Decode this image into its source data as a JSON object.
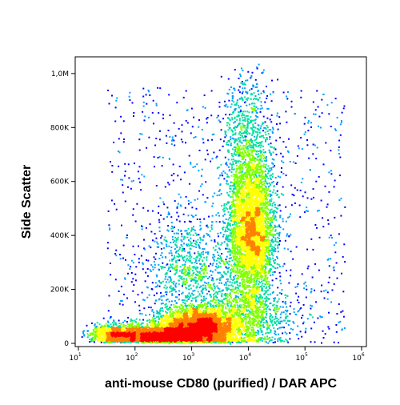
{
  "chart_data": {
    "type": "scatter",
    "style": "flow-cytometry density dot plot (pseudocolor)",
    "xlabel": "anti-mouse CD80 (purified) / DAR APC",
    "ylabel": "Side Scatter",
    "x_scale": "log",
    "xlim": [
      10,
      1000000
    ],
    "y_scale": "linear",
    "ylim": [
      0,
      1050000
    ],
    "x_ticks": [
      {
        "value": 10,
        "base": "10",
        "exp": "1"
      },
      {
        "value": 100,
        "base": "10",
        "exp": "2"
      },
      {
        "value": 1000,
        "base": "10",
        "exp": "3"
      },
      {
        "value": 10000,
        "base": "10",
        "exp": "4"
      },
      {
        "value": 100000,
        "base": "10",
        "exp": "5"
      },
      {
        "value": 1000000,
        "base": "10",
        "exp": "6"
      }
    ],
    "y_ticks": [
      {
        "value": 0,
        "label": "0"
      },
      {
        "value": 200000,
        "label": "200K"
      },
      {
        "value": 400000,
        "label": "400K"
      },
      {
        "value": 600000,
        "label": "600K"
      },
      {
        "value": 800000,
        "label": "800K"
      },
      {
        "value": 1000000,
        "label": "1,0M"
      }
    ],
    "populations": [
      {
        "x_center": 1200,
        "y_center": 60000,
        "log_sd_x": 0.35,
        "sd_y": 35000,
        "weight": 0.3
      },
      {
        "x_center": 250,
        "y_center": 30000,
        "log_sd_x": 0.4,
        "sd_y": 18000,
        "weight": 0.18
      },
      {
        "x_center": 45,
        "y_center": 35000,
        "log_sd_x": 0.25,
        "sd_y": 20000,
        "weight": 0.06
      },
      {
        "x_center": 11000,
        "y_center": 420000,
        "log_sd_x": 0.2,
        "sd_y": 130000,
        "weight": 0.28
      },
      {
        "x_center": 9000,
        "y_center": 750000,
        "log_sd_x": 0.22,
        "sd_y": 130000,
        "weight": 0.05
      },
      {
        "x_center": 800,
        "y_center": 280000,
        "log_sd_x": 0.35,
        "sd_y": 100000,
        "weight": 0.05
      },
      {
        "x_center": 8000,
        "y_center": 100000,
        "log_sd_x": 0.45,
        "sd_y": 70000,
        "weight": 0.08
      }
    ],
    "density_colors": [
      "#0000ff",
      "#00a0ff",
      "#00e0a0",
      "#80ff00",
      "#ffff00",
      "#ff8000",
      "#ff0000"
    ],
    "grid": false,
    "legend": "none"
  }
}
